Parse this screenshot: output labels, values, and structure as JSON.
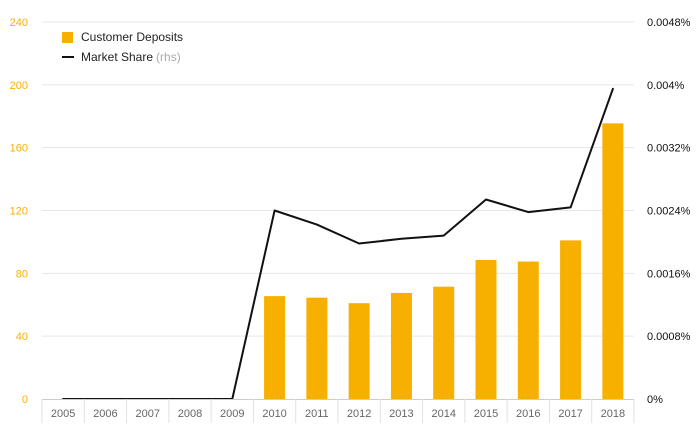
{
  "chart_data": {
    "type": "bar",
    "categories": [
      "2005",
      "2006",
      "2007",
      "2008",
      "2009",
      "2010",
      "2011",
      "2012",
      "2013",
      "2014",
      "2015",
      "2016",
      "2017",
      "2018"
    ],
    "series": [
      {
        "name": "Customer Deposits",
        "type": "bar",
        "axis": "left",
        "color": "#f8b000",
        "values": [
          0,
          0,
          0,
          0,
          0,
          65.5,
          64.5,
          61,
          67.5,
          71.5,
          88.5,
          87.5,
          101,
          175.5
        ]
      },
      {
        "name": "Market Share",
        "legend_note": "(rhs)",
        "type": "line",
        "axis": "right",
        "color": "#111111",
        "values": [
          0,
          0,
          0,
          0,
          0,
          0.0024,
          0.00222,
          0.00198,
          0.00204,
          0.00208,
          0.00254,
          0.00238,
          0.00244,
          0.00395
        ]
      }
    ],
    "left_axis": {
      "ylim": [
        0,
        240
      ],
      "ticks": [
        0,
        40,
        80,
        120,
        160,
        200,
        240
      ],
      "tick_labels": [
        "0",
        "40",
        "80",
        "120",
        "160",
        "200",
        "240"
      ],
      "tick_color": "#f8b000"
    },
    "right_axis": {
      "ylim": [
        0,
        0.0048
      ],
      "ticks": [
        0,
        0.0008,
        0.0016,
        0.0024,
        0.0032,
        0.004,
        0.0048
      ],
      "tick_labels": [
        "0%",
        "0.0008%",
        "0.0016%",
        "0.0024%",
        "0.0032%",
        "0.004%",
        "0.0048%"
      ],
      "tick_color": "#111111"
    },
    "grid": true,
    "legend_position": "top-left",
    "title": "",
    "xlabel": "",
    "ylabel": ""
  }
}
